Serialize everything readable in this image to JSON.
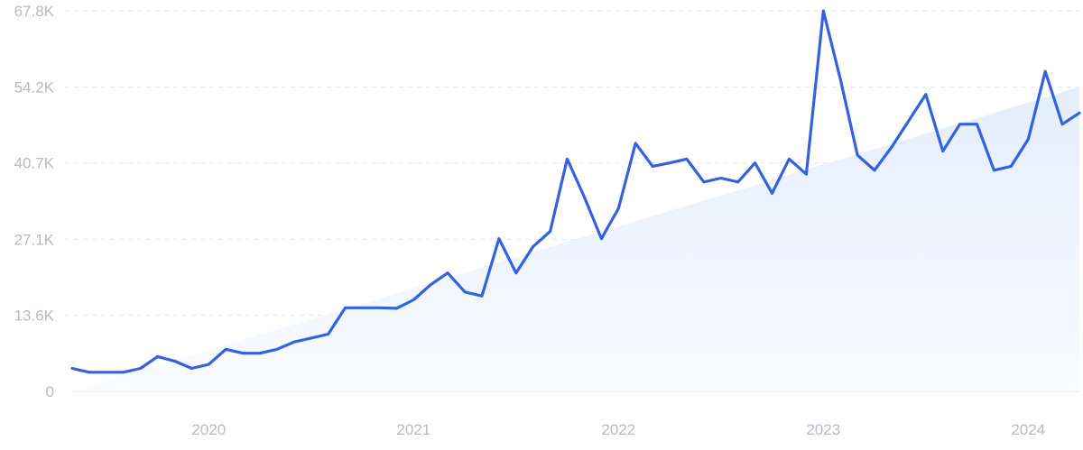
{
  "chart_data": {
    "type": "line",
    "title": "",
    "xlabel": "",
    "ylabel": "",
    "ylim": [
      0,
      67800
    ],
    "yticks": [
      {
        "value": 0,
        "label": "0"
      },
      {
        "value": 13600,
        "label": "13.6K"
      },
      {
        "value": 27100,
        "label": "27.1K"
      },
      {
        "value": 40700,
        "label": "40.7K"
      },
      {
        "value": 54200,
        "label": "54.2K"
      },
      {
        "value": 67800,
        "label": "67.8K"
      }
    ],
    "xlim": [
      "2019-05",
      "2024-04"
    ],
    "xticks": [
      {
        "value": "2020-01",
        "label": "2020"
      },
      {
        "value": "2021-01",
        "label": "2021"
      },
      {
        "value": "2022-01",
        "label": "2022"
      },
      {
        "value": "2023-01",
        "label": "2023"
      },
      {
        "value": "2024-01",
        "label": "2024"
      }
    ],
    "grid": true,
    "legend": "none",
    "trend": {
      "start": [
        "2019-05",
        0
      ],
      "end": [
        "2024-04",
        54200
      ]
    },
    "colors": {
      "line": "#3461de",
      "trend_fill_top": "#e3eefc",
      "trend_fill_bottom": "#f9fbff"
    },
    "series": [
      {
        "x": [
          "2019-05",
          "2019-06",
          "2019-07",
          "2019-08",
          "2019-09",
          "2019-10",
          "2019-11",
          "2019-12",
          "2020-01",
          "2020-02",
          "2020-03",
          "2020-04",
          "2020-05",
          "2020-06",
          "2020-07",
          "2020-08",
          "2020-09",
          "2020-10",
          "2020-11",
          "2020-12",
          "2021-01",
          "2021-02",
          "2021-03",
          "2021-04",
          "2021-05",
          "2021-06",
          "2021-07",
          "2021-08",
          "2021-09",
          "2021-10",
          "2021-11",
          "2021-12",
          "2022-01",
          "2022-02",
          "2022-03",
          "2022-04",
          "2022-05",
          "2022-06",
          "2022-07",
          "2022-08",
          "2022-09",
          "2022-10",
          "2022-11",
          "2022-12",
          "2023-01",
          "2023-02",
          "2023-03",
          "2023-04",
          "2023-05",
          "2023-06",
          "2023-07",
          "2023-08",
          "2023-09",
          "2023-10",
          "2023-11",
          "2023-12",
          "2024-01",
          "2024-02",
          "2024-03",
          "2024-04"
        ],
        "values": [
          4100,
          3400,
          3400,
          3400,
          4100,
          6200,
          5400,
          4100,
          4800,
          7500,
          6800,
          6800,
          7500,
          8800,
          9500,
          10200,
          14900,
          14900,
          14900,
          14800,
          16300,
          19000,
          21100,
          17700,
          17000,
          27200,
          21100,
          25800,
          28500,
          41400,
          34600,
          27200,
          32600,
          44200,
          40100,
          40700,
          41400,
          37300,
          38000,
          37300,
          40700,
          35300,
          41400,
          38700,
          67800,
          55600,
          42100,
          39400,
          43500,
          48200,
          52900,
          42800,
          47600,
          47600,
          39400,
          40100,
          44900,
          57000,
          47600,
          49600
        ]
      }
    ]
  }
}
